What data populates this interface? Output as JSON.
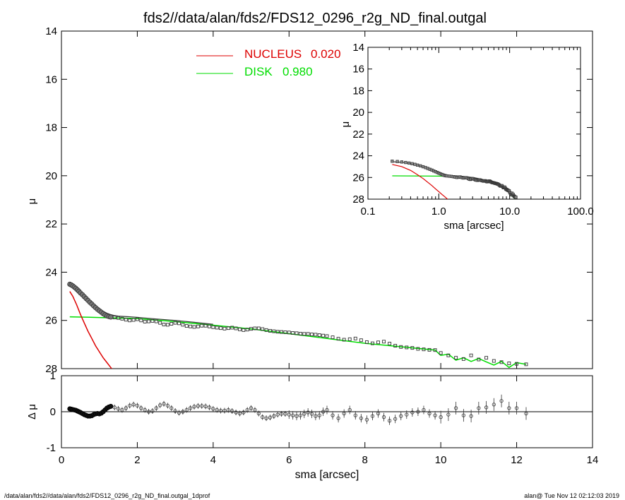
{
  "title": "fds2//data/alan/fds2/FDS12_0296_r2g_ND_final.outgal",
  "footer_left": "/data/alan/fds2//data/alan/fds2/FDS12_0296_r2g_ND_final.outgal_1dprof",
  "footer_right": "alan@  Tue Nov 12 02:12:03 2019",
  "chart_data": [
    {
      "type": "scatter",
      "role": "main-profile",
      "xlabel": "",
      "ylabel": "μ",
      "xlim": [
        0,
        14
      ],
      "ylim": [
        28,
        14
      ],
      "y_inverted": true,
      "yticks": [
        14,
        16,
        18,
        20,
        22,
        24,
        26,
        28
      ],
      "legend": [
        {
          "label": "NUCLEUS",
          "value": "0.020",
          "color": "#dd0000"
        },
        {
          "label": "DISK",
          "value": "0.980",
          "color": "#00dd00"
        }
      ],
      "series": [
        {
          "name": "data",
          "x": [
            0.22,
            0.26,
            0.3,
            0.34,
            0.38,
            0.42,
            0.46,
            0.5,
            0.55,
            0.6,
            0.65,
            0.7,
            0.75,
            0.8,
            0.85,
            0.9,
            0.95,
            1.0,
            1.05,
            1.1,
            1.15,
            1.2,
            1.25,
            1.3,
            1.4,
            1.5,
            1.6,
            1.7,
            1.8,
            1.9,
            2.0,
            2.1,
            2.2,
            2.3,
            2.4,
            2.5,
            2.6,
            2.7,
            2.8,
            2.9,
            3.0,
            3.1,
            3.2,
            3.3,
            3.4,
            3.5,
            3.6,
            3.7,
            3.8,
            3.9,
            4.0,
            4.1,
            4.2,
            4.3,
            4.4,
            4.5,
            4.6,
            4.7,
            4.8,
            4.9,
            5.0,
            5.1,
            5.2,
            5.3,
            5.4,
            5.5,
            5.6,
            5.7,
            5.8,
            5.9,
            6.0,
            6.1,
            6.2,
            6.3,
            6.4,
            6.5,
            6.6,
            6.7,
            6.8,
            6.9,
            7.0,
            7.15,
            7.3,
            7.45,
            7.6,
            7.75,
            7.9,
            8.05,
            8.2,
            8.35,
            8.5,
            8.65,
            8.8,
            8.95,
            9.1,
            9.25,
            9.4,
            9.55,
            9.7,
            9.85,
            10.0,
            10.2,
            10.4,
            10.6,
            10.8,
            11.0,
            11.2,
            11.4,
            11.6,
            11.8,
            12.0,
            12.25
          ],
          "y": [
            24.5,
            24.53,
            24.57,
            24.62,
            24.67,
            24.73,
            24.79,
            24.86,
            24.93,
            25.01,
            25.09,
            25.17,
            25.25,
            25.32,
            25.4,
            25.47,
            25.54,
            25.6,
            25.66,
            25.72,
            25.77,
            25.81,
            25.84,
            25.86,
            25.88,
            25.9,
            25.93,
            25.97,
            26.0,
            25.98,
            25.95,
            26.0,
            26.05,
            26.04,
            26.02,
            26.04,
            26.1,
            26.17,
            26.18,
            26.14,
            26.1,
            26.12,
            26.18,
            26.23,
            26.25,
            26.27,
            26.25,
            26.22,
            26.22,
            26.25,
            26.28,
            26.3,
            26.32,
            26.34,
            26.32,
            26.3,
            26.33,
            26.37,
            26.4,
            26.38,
            26.35,
            26.33,
            26.33,
            26.36,
            26.4,
            26.43,
            26.45,
            26.47,
            26.48,
            26.49,
            26.5,
            26.52,
            26.53,
            26.55,
            26.56,
            26.56,
            26.58,
            26.59,
            26.61,
            26.63,
            26.65,
            26.7,
            26.76,
            26.8,
            26.78,
            26.75,
            26.82,
            26.9,
            26.95,
            26.91,
            26.88,
            26.96,
            27.05,
            27.1,
            27.12,
            27.14,
            27.18,
            27.2,
            27.22,
            27.23,
            27.35,
            27.45,
            27.55,
            27.6,
            27.45,
            27.62,
            27.55,
            27.68,
            27.73,
            27.78,
            27.8,
            27.82
          ]
        },
        {
          "name": "model-total",
          "x": [
            0.22,
            0.3,
            0.4,
            0.5,
            0.6,
            0.7,
            0.8,
            0.9,
            1.0,
            1.1,
            1.2,
            1.3,
            1.4,
            1.5,
            1.8,
            2.0,
            2.5,
            3.0,
            3.5,
            4.0
          ],
          "y": [
            24.55,
            24.6,
            24.72,
            24.84,
            24.97,
            25.1,
            25.25,
            25.38,
            25.5,
            25.62,
            25.7,
            25.76,
            25.8,
            25.82,
            25.85,
            25.87,
            25.94,
            26.0,
            26.08,
            26.16
          ]
        },
        {
          "name": "model-nucleus",
          "x": [
            0.22,
            0.3,
            0.4,
            0.5,
            0.6,
            0.7,
            0.8,
            0.9,
            1.0,
            1.1,
            1.2,
            1.3,
            1.4,
            1.45
          ],
          "y": [
            24.8,
            25.0,
            25.35,
            25.75,
            26.1,
            26.45,
            26.75,
            27.05,
            27.3,
            27.55,
            27.75,
            27.95,
            28.15,
            28.25
          ]
        },
        {
          "name": "model-disk",
          "x": [
            0.22,
            1.0,
            2.0,
            3.0,
            4.0,
            5.0,
            6.0,
            7.0,
            8.0,
            9.0,
            9.85,
            10.0,
            10.2,
            10.4,
            10.6,
            10.8,
            11.0,
            11.2,
            11.4,
            11.6,
            11.8,
            12.0,
            12.25
          ],
          "y": [
            25.85,
            25.88,
            25.92,
            26.05,
            26.2,
            26.35,
            26.55,
            26.75,
            26.95,
            27.1,
            27.23,
            27.45,
            27.4,
            27.65,
            27.55,
            27.7,
            27.58,
            27.72,
            27.85,
            27.7,
            27.95,
            27.75,
            27.82
          ]
        }
      ]
    },
    {
      "type": "scatter",
      "role": "residuals",
      "xlabel": "sma [arcsec]",
      "ylabel": "Δ μ",
      "xlim": [
        0,
        14
      ],
      "ylim": [
        -1,
        1
      ],
      "xticks": [
        0,
        2,
        4,
        6,
        8,
        10,
        12,
        14
      ],
      "yticks": [
        -1,
        0,
        1
      ],
      "series": [
        {
          "name": "residual",
          "x": [
            0.22,
            0.26,
            0.3,
            0.34,
            0.38,
            0.42,
            0.46,
            0.5,
            0.55,
            0.6,
            0.65,
            0.7,
            0.75,
            0.8,
            0.85,
            0.9,
            0.95,
            1.0,
            1.05,
            1.1,
            1.15,
            1.2,
            1.25,
            1.3,
            1.4,
            1.5,
            1.6,
            1.7,
            1.8,
            1.9,
            2.0,
            2.1,
            2.2,
            2.3,
            2.4,
            2.5,
            2.6,
            2.7,
            2.8,
            2.9,
            3.0,
            3.1,
            3.2,
            3.3,
            3.4,
            3.5,
            3.6,
            3.7,
            3.8,
            3.9,
            4.0,
            4.1,
            4.2,
            4.3,
            4.4,
            4.5,
            4.6,
            4.7,
            4.8,
            4.9,
            5.0,
            5.1,
            5.2,
            5.3,
            5.4,
            5.5,
            5.6,
            5.7,
            5.8,
            5.9,
            6.0,
            6.1,
            6.2,
            6.3,
            6.4,
            6.5,
            6.6,
            6.7,
            6.8,
            6.9,
            7.0,
            7.15,
            7.3,
            7.45,
            7.6,
            7.75,
            7.9,
            8.05,
            8.2,
            8.35,
            8.5,
            8.65,
            8.8,
            8.95,
            9.1,
            9.25,
            9.4,
            9.55,
            9.7,
            9.85,
            10.0,
            10.2,
            10.4,
            10.6,
            10.8,
            11.0,
            11.2,
            11.4,
            11.6,
            11.8,
            12.0,
            12.25
          ],
          "y": [
            0.08,
            0.07,
            0.06,
            0.05,
            0.04,
            0.02,
            0.0,
            -0.02,
            -0.05,
            -0.08,
            -0.1,
            -0.12,
            -0.12,
            -0.11,
            -0.08,
            -0.06,
            -0.05,
            -0.06,
            -0.04,
            0.0,
            0.05,
            0.1,
            0.13,
            0.15,
            0.12,
            0.08,
            0.05,
            0.1,
            0.17,
            0.2,
            0.17,
            0.1,
            0.05,
            0.0,
            0.02,
            0.1,
            0.18,
            0.22,
            0.17,
            0.1,
            0.02,
            -0.03,
            0.0,
            0.05,
            0.1,
            0.14,
            0.16,
            0.16,
            0.15,
            0.12,
            0.08,
            0.05,
            0.03,
            0.03,
            0.05,
            0.02,
            -0.02,
            -0.05,
            -0.02,
            0.05,
            0.1,
            0.05,
            -0.05,
            -0.15,
            -0.18,
            -0.16,
            -0.12,
            -0.08,
            -0.06,
            -0.06,
            -0.08,
            -0.1,
            -0.12,
            -0.1,
            -0.06,
            -0.02,
            -0.06,
            -0.12,
            -0.1,
            0.0,
            0.05,
            -0.1,
            -0.18,
            -0.05,
            0.05,
            -0.1,
            -0.18,
            -0.22,
            -0.12,
            -0.05,
            -0.15,
            -0.25,
            -0.2,
            -0.12,
            -0.08,
            -0.02,
            0.0,
            0.05,
            -0.05,
            -0.1,
            -0.15,
            -0.08,
            0.1,
            -0.1,
            -0.12,
            0.1,
            0.12,
            0.2,
            0.3,
            0.1,
            0.1,
            -0.05
          ]
        }
      ]
    },
    {
      "type": "scatter",
      "role": "inset-log-profile",
      "xlabel": "sma [arcsec]",
      "ylabel": "μ",
      "x_scale": "log",
      "xlim": [
        0.1,
        100
      ],
      "ylim": [
        28,
        14
      ],
      "y_inverted": true,
      "xtick_labels": [
        "0.1",
        "1.0",
        "10.0",
        "100.0"
      ],
      "yticks": [
        14,
        16,
        18,
        20,
        22,
        24,
        26,
        28
      ]
    }
  ]
}
